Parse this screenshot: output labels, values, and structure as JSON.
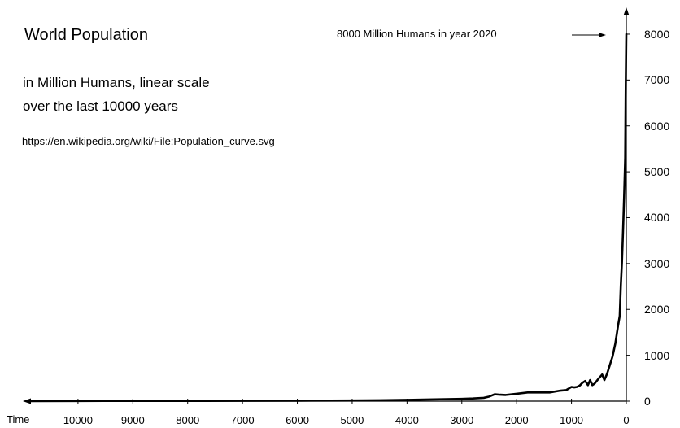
{
  "chart_data": {
    "type": "line",
    "title": "World Population",
    "subtitle": [
      "in Million Humans, linear scale",
      "over the last 10000 years"
    ],
    "source": "https://en.wikipedia.org/wiki/File:Population_curve.svg",
    "annotation": "8000 Million Humans in year 2020",
    "xlabel": "Time",
    "ylabel": "",
    "x_axis_reversed": true,
    "xlim": [
      0,
      11100
    ],
    "ylim": [
      0,
      8000
    ],
    "x_ticks": [
      "10000",
      "9000",
      "8000",
      "7000",
      "6000",
      "5000",
      "4000",
      "3000",
      "2000",
      "1000",
      "0"
    ],
    "y_ticks": [
      "0",
      "1000",
      "2000",
      "3000",
      "4000",
      "5000",
      "6000",
      "7000",
      "8000"
    ],
    "grid": false,
    "legend": "none",
    "series": [
      {
        "x": [
          10900,
          10000,
          9000,
          8000,
          7000,
          6000,
          5000,
          4500,
          4000,
          3500,
          3000,
          2800,
          2600,
          2500,
          2400,
          2300,
          2200,
          2000,
          1800,
          1600,
          1400,
          1200,
          1100,
          1000,
          950,
          900,
          850,
          800,
          750,
          700,
          660,
          620,
          580,
          540,
          500,
          440,
          400,
          350,
          300,
          250,
          200,
          150,
          120,
          100,
          80,
          60,
          40,
          20,
          10,
          0
        ],
        "y": [
          2,
          4,
          5,
          5,
          7,
          10,
          14,
          19,
          27,
          38,
          50,
          58,
          72,
          100,
          150,
          140,
          135,
          160,
          190,
          190,
          190,
          230,
          240,
          310,
          300,
          310,
          340,
          400,
          440,
          350,
          460,
          350,
          380,
          440,
          500,
          580,
          460,
          600,
          790,
          980,
          1260,
          1650,
          1860,
          2520,
          3020,
          3700,
          4450,
          5300,
          6900,
          8000
        ],
        "color": "#000000"
      }
    ]
  }
}
